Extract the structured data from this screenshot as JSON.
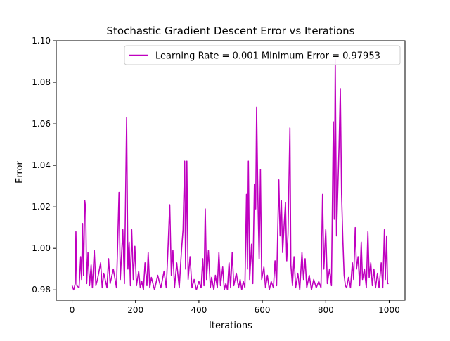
{
  "chart_data": {
    "type": "line",
    "title": "Stochastic Gradient Descent Error vs Iterations",
    "xlabel": "Iterations",
    "ylabel": "Error",
    "xlim": [
      -50,
      1050
    ],
    "ylim": [
      0.975,
      1.1
    ],
    "xticks": [
      0,
      200,
      400,
      600,
      800,
      1000
    ],
    "xtick_labels": [
      "0",
      "200",
      "400",
      "600",
      "800",
      "1000"
    ],
    "yticks": [
      0.98,
      1.0,
      1.02,
      1.04,
      1.06,
      1.08,
      1.1
    ],
    "ytick_labels": [
      "0.98",
      "1.00",
      "1.02",
      "1.04",
      "1.06",
      "1.08",
      "1.10"
    ],
    "grid": false,
    "legend_position": "top-right",
    "series": [
      {
        "name": "Learning Rate = 0.001 Minimum Error = 0.97953",
        "color": "#bf00bf",
        "peaks": [
          [
            0,
            0.982
          ],
          [
            5,
            0.98
          ],
          [
            10,
            0.983
          ],
          [
            12,
            1.008
          ],
          [
            15,
            0.982
          ],
          [
            22,
            0.981
          ],
          [
            27,
            0.996
          ],
          [
            30,
            0.985
          ],
          [
            33,
            1.012
          ],
          [
            36,
            0.987
          ],
          [
            40,
            1.023
          ],
          [
            43,
            1.019
          ],
          [
            46,
            0.983
          ],
          [
            50,
            0.998
          ],
          [
            55,
            0.982
          ],
          [
            60,
            0.992
          ],
          [
            64,
            0.981
          ],
          [
            70,
            0.999
          ],
          [
            75,
            0.982
          ],
          [
            80,
            0.985
          ],
          [
            90,
            0.993
          ],
          [
            95,
            0.981
          ],
          [
            100,
            0.988
          ],
          [
            110,
            0.981
          ],
          [
            115,
            0.995
          ],
          [
            120,
            0.983
          ],
          [
            130,
            0.99
          ],
          [
            140,
            0.981
          ],
          [
            148,
            1.027
          ],
          [
            152,
            0.985
          ],
          [
            160,
            1.009
          ],
          [
            165,
            0.983
          ],
          [
            172,
            1.063
          ],
          [
            176,
            0.99
          ],
          [
            180,
            1.003
          ],
          [
            184,
            0.982
          ],
          [
            188,
            1.009
          ],
          [
            193,
            0.985
          ],
          [
            198,
            1.001
          ],
          [
            203,
            0.982
          ],
          [
            210,
            0.989
          ],
          [
            215,
            0.981
          ],
          [
            220,
            0.984
          ],
          [
            225,
            0.98
          ],
          [
            230,
            0.993
          ],
          [
            236,
            0.982
          ],
          [
            240,
            0.998
          ],
          [
            245,
            0.981
          ],
          [
            250,
            0.986
          ],
          [
            260,
            0.98
          ],
          [
            270,
            0.987
          ],
          [
            280,
            0.981
          ],
          [
            290,
            0.989
          ],
          [
            297,
            0.981
          ],
          [
            302,
            0.998
          ],
          [
            308,
            1.021
          ],
          [
            313,
            0.987
          ],
          [
            318,
            0.999
          ],
          [
            323,
            0.981
          ],
          [
            330,
            0.993
          ],
          [
            338,
            0.981
          ],
          [
            345,
            0.999
          ],
          [
            350,
            1.009
          ],
          [
            355,
            1.042
          ],
          [
            358,
            0.99
          ],
          [
            362,
            1.042
          ],
          [
            366,
            0.985
          ],
          [
            372,
            0.996
          ],
          [
            378,
            0.981
          ],
          [
            385,
            0.985
          ],
          [
            392,
            0.98
          ],
          [
            400,
            0.984
          ],
          [
            407,
            0.981
          ],
          [
            412,
            0.995
          ],
          [
            416,
            0.982
          ],
          [
            420,
            1.019
          ],
          [
            424,
            0.985
          ],
          [
            430,
            0.999
          ],
          [
            436,
            0.981
          ],
          [
            440,
            0.986
          ],
          [
            447,
            0.98
          ],
          [
            452,
            0.987
          ],
          [
            458,
            0.981
          ],
          [
            463,
            0.998
          ],
          [
            468,
            0.982
          ],
          [
            475,
            0.991
          ],
          [
            480,
            0.98
          ],
          [
            485,
            0.983
          ],
          [
            490,
            0.98
          ],
          [
            495,
            0.993
          ],
          [
            500,
            0.981
          ],
          [
            505,
            0.998
          ],
          [
            510,
            0.982
          ],
          [
            518,
            0.988
          ],
          [
            525,
            0.981
          ],
          [
            530,
            0.985
          ],
          [
            535,
            0.98
          ],
          [
            540,
            0.984
          ],
          [
            545,
            0.981
          ],
          [
            550,
            1.026
          ],
          [
            553,
            0.99
          ],
          [
            556,
            1.042
          ],
          [
            560,
            0.985
          ],
          [
            566,
            1.002
          ],
          [
            570,
            0.983
          ],
          [
            575,
            1.031
          ],
          [
            579,
            1.019
          ],
          [
            582,
            1.068
          ],
          [
            586,
            1.024
          ],
          [
            590,
            0.995
          ],
          [
            594,
            1.038
          ],
          [
            598,
            0.985
          ],
          [
            605,
            0.991
          ],
          [
            610,
            0.981
          ],
          [
            616,
            0.987
          ],
          [
            622,
            0.98
          ],
          [
            628,
            0.984
          ],
          [
            635,
            0.981
          ],
          [
            640,
            0.994
          ],
          [
            645,
            0.982
          ],
          [
            652,
            1.033
          ],
          [
            656,
            1.006
          ],
          [
            660,
            1.023
          ],
          [
            664,
            0.998
          ],
          [
            669,
            1.012
          ],
          [
            673,
            1.022
          ],
          [
            677,
            0.994
          ],
          [
            681,
            1.007
          ],
          [
            687,
            1.058
          ],
          [
            690,
            0.992
          ],
          [
            695,
            0.982
          ],
          [
            700,
            0.996
          ],
          [
            705,
            0.981
          ],
          [
            712,
            0.988
          ],
          [
            718,
            0.98
          ],
          [
            725,
            0.998
          ],
          [
            730,
            0.985
          ],
          [
            735,
            0.995
          ],
          [
            740,
            0.981
          ],
          [
            748,
            0.987
          ],
          [
            755,
            0.98
          ],
          [
            762,
            0.985
          ],
          [
            770,
            0.981
          ],
          [
            778,
            0.984
          ],
          [
            785,
            0.981
          ],
          [
            790,
            1.026
          ],
          [
            794,
            0.99
          ],
          [
            800,
            1.009
          ],
          [
            805,
            0.983
          ],
          [
            812,
            0.99
          ],
          [
            818,
            0.982
          ],
          [
            824,
            1.061
          ],
          [
            827,
            1.014
          ],
          [
            830,
            1.091
          ],
          [
            834,
            1.006
          ],
          [
            838,
            1.028
          ],
          [
            842,
            1.049
          ],
          [
            846,
            1.077
          ],
          [
            850,
            1.026
          ],
          [
            854,
            1.004
          ],
          [
            858,
            0.987
          ],
          [
            862,
            0.982
          ],
          [
            866,
            0.981
          ],
          [
            872,
            0.986
          ],
          [
            878,
            0.981
          ],
          [
            884,
            0.993
          ],
          [
            888,
            0.985
          ],
          [
            893,
            1.01
          ],
          [
            897,
            0.99
          ],
          [
            902,
            0.996
          ],
          [
            907,
            0.982
          ],
          [
            912,
            1.003
          ],
          [
            916,
            0.985
          ],
          [
            922,
            0.99
          ],
          [
            928,
            0.981
          ],
          [
            933,
            1.008
          ],
          [
            937,
            0.986
          ],
          [
            942,
            0.993
          ],
          [
            947,
            0.982
          ],
          [
            952,
            0.99
          ],
          [
            957,
            0.981
          ],
          [
            963,
            0.988
          ],
          [
            968,
            0.981
          ],
          [
            975,
            0.993
          ],
          [
            980,
            0.981
          ],
          [
            985,
            1.009
          ],
          [
            988,
            0.985
          ],
          [
            992,
            1.006
          ],
          [
            995,
            0.983
          ],
          [
            998,
            0.983
          ]
        ]
      }
    ]
  }
}
